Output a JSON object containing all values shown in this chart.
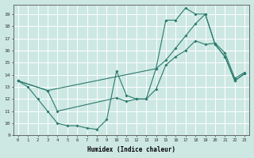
{
  "xlabel": "Humidex (Indice chaleur)",
  "bg_color": "#cde8e3",
  "grid_color": "#ffffff",
  "line_color": "#2a7a6e",
  "xlim": [
    -0.5,
    23.5
  ],
  "ylim": [
    9,
    19.8
  ],
  "xticks": [
    0,
    1,
    2,
    3,
    4,
    5,
    6,
    7,
    8,
    9,
    10,
    11,
    12,
    13,
    14,
    15,
    16,
    17,
    18,
    19,
    20,
    21,
    22,
    23
  ],
  "yticks": [
    9,
    10,
    11,
    12,
    13,
    14,
    15,
    16,
    17,
    18,
    19
  ],
  "line1_x": [
    0,
    1,
    2,
    3,
    4,
    5,
    6,
    7,
    8,
    9,
    10,
    11,
    12,
    13,
    14,
    15,
    16,
    17,
    18,
    19,
    20,
    21,
    22,
    23
  ],
  "line1_y": [
    13.5,
    13.0,
    12.0,
    11.0,
    10.0,
    9.8,
    9.8,
    9.6,
    9.5,
    10.3,
    14.3,
    12.3,
    12.0,
    12.0,
    14.5,
    18.5,
    18.5,
    19.5,
    19.0,
    19.0,
    16.5,
    15.5,
    13.5,
    14.1
  ],
  "line2_x": [
    0,
    3,
    14,
    15,
    16,
    17,
    18,
    19,
    20,
    21,
    22,
    23
  ],
  "line2_y": [
    13.5,
    12.7,
    14.5,
    15.2,
    16.2,
    17.2,
    18.2,
    19.0,
    16.5,
    15.5,
    13.5,
    14.1
  ],
  "line3_x": [
    0,
    3,
    4,
    10,
    11,
    12,
    13,
    14,
    15,
    16,
    17,
    18,
    19,
    20,
    21,
    22,
    23
  ],
  "line3_y": [
    13.5,
    12.7,
    11.0,
    12.1,
    11.8,
    12.0,
    12.0,
    12.8,
    14.8,
    15.5,
    16.0,
    16.8,
    16.5,
    16.6,
    15.8,
    13.7,
    14.2
  ]
}
